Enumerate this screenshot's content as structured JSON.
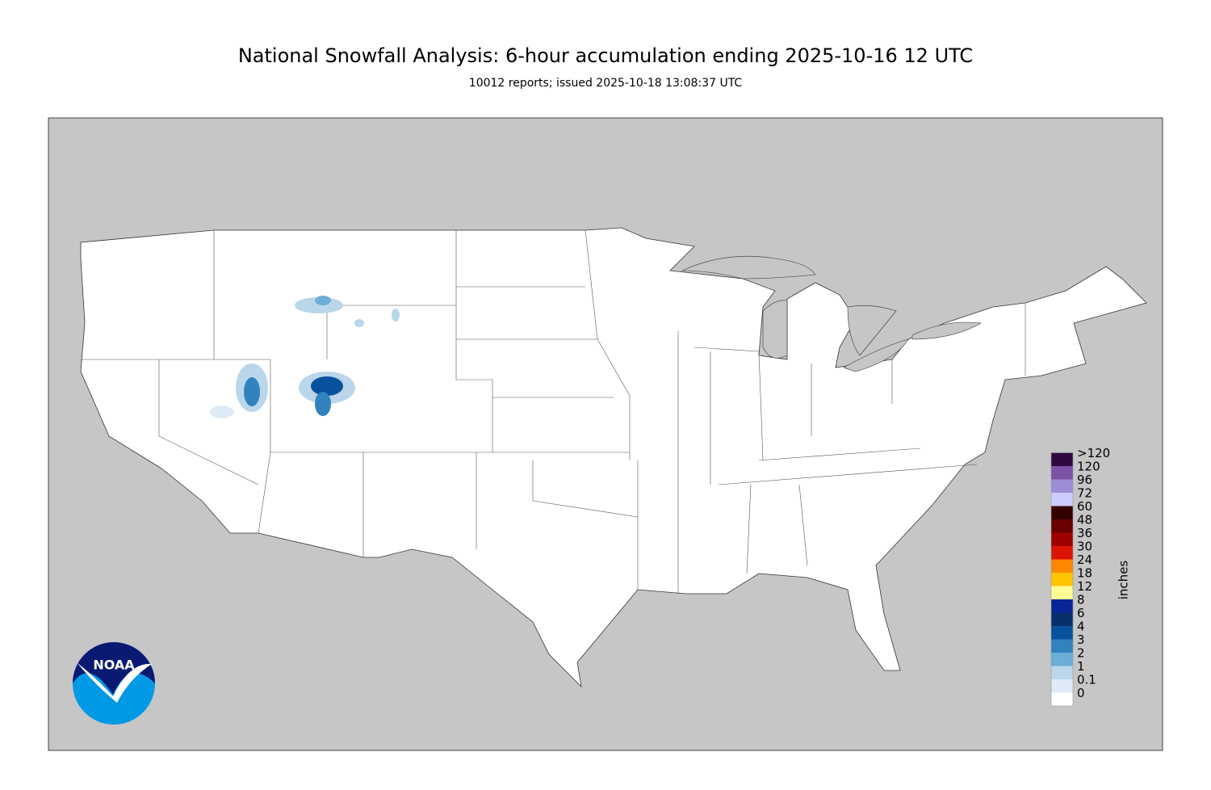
{
  "header": {
    "title": "National Snowfall Analysis: 6-hour accumulation ending 2025-10-16 12 UTC",
    "subtitle": "10012 reports; issued 2025-10-18 13:08:37 UTC"
  },
  "legend": {
    "unit": "inches",
    "bins": [
      {
        "label": "0",
        "color": "#ffffff"
      },
      {
        "label": "0.1",
        "color": "#deebf7"
      },
      {
        "label": "1",
        "color": "#b9d6ea"
      },
      {
        "label": "2",
        "color": "#6baed6"
      },
      {
        "label": "3",
        "color": "#3182bd"
      },
      {
        "label": "4",
        "color": "#08519c"
      },
      {
        "label": "6",
        "color": "#08306b"
      },
      {
        "label": "8",
        "color": "#082694"
      },
      {
        "label": "12",
        "color": "#ffff96"
      },
      {
        "label": "18",
        "color": "#ffc400"
      },
      {
        "label": "24",
        "color": "#ff8700"
      },
      {
        "label": "30",
        "color": "#db1400"
      },
      {
        "label": "36",
        "color": "#9e0000"
      },
      {
        "label": "48",
        "color": "#690000"
      },
      {
        "label": "60",
        "color": "#360000"
      },
      {
        "label": "72",
        "color": "#ccccff"
      },
      {
        "label": "96",
        "color": "#9f8cd8"
      },
      {
        "label": "120",
        "color": "#7c52a5"
      },
      {
        "label": ">120",
        "color": "#561c72"
      }
    ],
    "top_color": "#2e0a40"
  },
  "logo": {
    "text": "NOAA"
  }
}
